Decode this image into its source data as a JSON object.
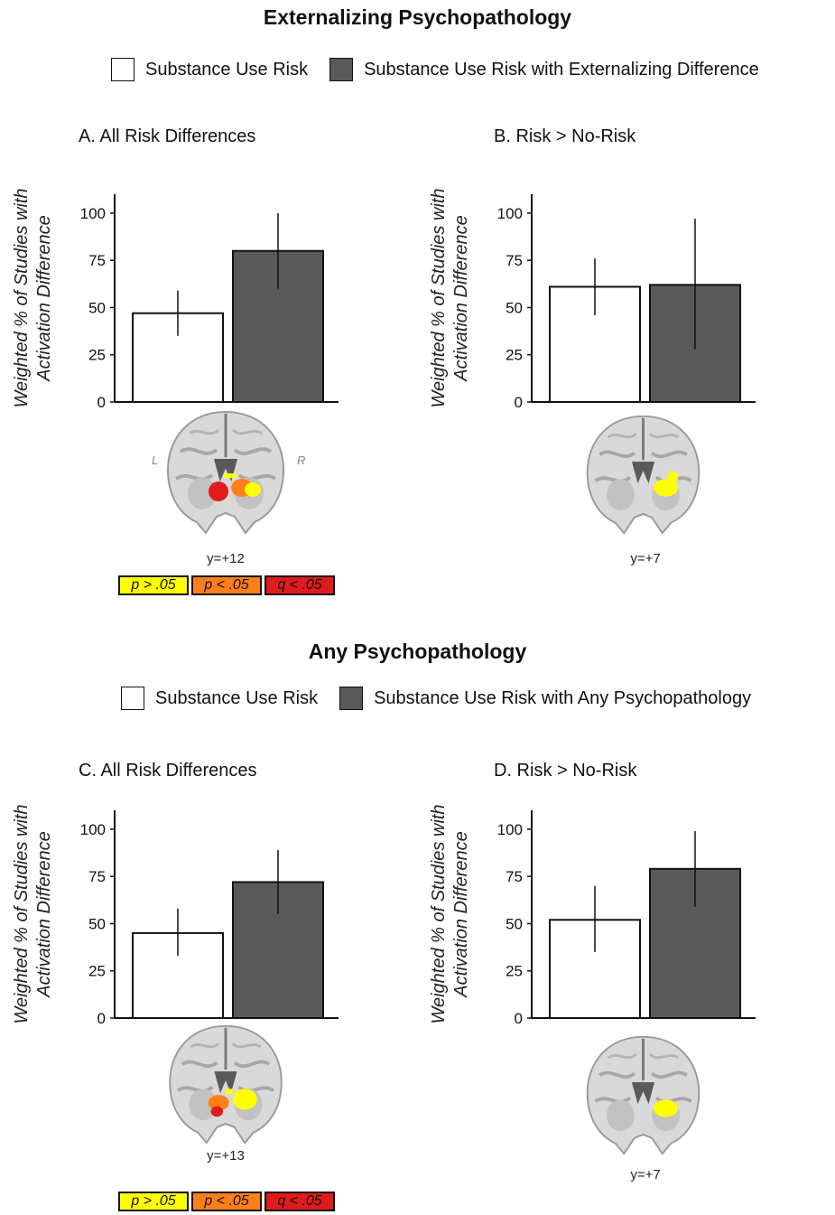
{
  "sections": [
    {
      "title": "Externalizing Psychopathology",
      "legend": [
        "Substance Use Risk",
        "Substance Use Risk with Externalizing Difference"
      ]
    },
    {
      "title": "Any Psychopathology",
      "legend": [
        "Substance Use Risk",
        "Substance Use Risk with Any Psychopathology"
      ]
    }
  ],
  "colors": {
    "risk": "#ffffff",
    "risk_with_psych": "#595959",
    "yellow": "#ffff00",
    "orange": "#ff7f1a",
    "red": "#e01b1b"
  },
  "ylabel_line1": "Weighted % of Studies with",
  "ylabel_line2": "Activation Difference",
  "yticks": [
    "0",
    "25",
    "50",
    "75",
    "100"
  ],
  "significance_legend": [
    "p > .05",
    "p < .05",
    "q < .05"
  ],
  "brain_labels": {
    "left": "L",
    "right": "R"
  },
  "panels": [
    {
      "title": "A. All Risk Differences",
      "coord": "y=+12",
      "brain": "a"
    },
    {
      "title": "B. Risk > No-Risk",
      "coord": "y=+7",
      "brain": "b"
    },
    {
      "title": "C. All Risk Differences",
      "coord": "y=+13",
      "brain": "c"
    },
    {
      "title": "D. Risk > No-Risk",
      "coord": "y=+7",
      "brain": "d"
    }
  ],
  "chart_data": [
    {
      "type": "bar",
      "title": "A. All Risk Differences",
      "ylim": [
        0,
        110
      ],
      "series": [
        {
          "name": "Substance Use Risk",
          "value": 47,
          "err": [
            35,
            59
          ]
        },
        {
          "name": "Substance Use Risk with Externalizing Difference",
          "value": 80,
          "err": [
            60,
            100
          ]
        }
      ]
    },
    {
      "type": "bar",
      "title": "B. Risk > No-Risk",
      "ylim": [
        0,
        110
      ],
      "series": [
        {
          "name": "Substance Use Risk",
          "value": 61,
          "err": [
            46,
            76
          ]
        },
        {
          "name": "Substance Use Risk with Externalizing Difference",
          "value": 62,
          "err": [
            28,
            97
          ]
        }
      ]
    },
    {
      "type": "bar",
      "title": "C. All Risk Differences",
      "ylim": [
        0,
        110
      ],
      "series": [
        {
          "name": "Substance Use Risk",
          "value": 45,
          "err": [
            33,
            58
          ]
        },
        {
          "name": "Substance Use Risk with Any Psychopathology",
          "value": 72,
          "err": [
            55,
            89
          ]
        }
      ]
    },
    {
      "type": "bar",
      "title": "D. Risk > No-Risk",
      "ylim": [
        0,
        110
      ],
      "series": [
        {
          "name": "Substance Use Risk",
          "value": 52,
          "err": [
            35,
            70
          ]
        },
        {
          "name": "Substance Use Risk with Any Psychopathology",
          "value": 79,
          "err": [
            59,
            99
          ]
        }
      ]
    }
  ]
}
